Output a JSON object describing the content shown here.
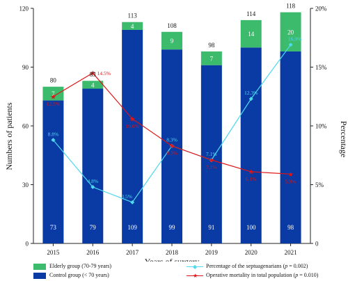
{
  "chart_data": {
    "type": "bar",
    "xlabel": "Years of surgery",
    "ylabel": "Numbers of patients",
    "y2label": "Percentage",
    "categories": [
      "2015",
      "2016",
      "2017",
      "2018",
      "2019",
      "2020",
      "2021"
    ],
    "ylim": [
      0,
      120
    ],
    "y_ticks": [
      "0",
      "30",
      "60",
      "90",
      "120"
    ],
    "y2lim": [
      0,
      20
    ],
    "y2_ticks": [
      "0",
      "5%",
      "10%",
      "15%",
      "20%"
    ],
    "stacked": true,
    "series": [
      {
        "name": "Control group (< 70 years)",
        "axis": "left",
        "color": "#0a3aa3",
        "values": [
          73,
          79,
          109,
          99,
          91,
          100,
          98
        ],
        "labels": [
          "73",
          "79",
          "109",
          "99",
          "91",
          "100",
          "98"
        ]
      },
      {
        "name": "Elderly group (70-79 years)",
        "axis": "left",
        "color": "#3dbb6d",
        "values": [
          7,
          4,
          4,
          9,
          7,
          14,
          20
        ],
        "labels": [
          "7",
          "4",
          "4",
          "9",
          "7",
          "14",
          "20"
        ]
      }
    ],
    "totals": [
      "80",
      "83",
      "113",
      "108",
      "98",
      "114",
      "118"
    ],
    "lines": [
      {
        "name": "Percentage of the septuagenarians",
        "p_value": "(p = 0.002)",
        "axis": "right",
        "color": "#4dd9ee",
        "marker": "diamond",
        "values": [
          8.8,
          4.8,
          3.5,
          8.3,
          7.1,
          12.3,
          16.9
        ],
        "labels": [
          "8.8%",
          "4.8%",
          "3.5%",
          "8.3%",
          "7.1%",
          "12.3%",
          "16.9%"
        ]
      },
      {
        "name": "Operative mortality in total population",
        "p_value": "(p = 0.010)",
        "axis": "right",
        "color": "#e01414",
        "marker": "star",
        "values": [
          12.5,
          14.5,
          10.6,
          8.3,
          7.1,
          6.1,
          5.9
        ],
        "labels": [
          "12.5%",
          "14.5%",
          "10.6%",
          "8.3%",
          "7.1%",
          "6.1%",
          "5.9%"
        ]
      }
    ],
    "legend": {
      "elderly_prefix": "Elderly group (70-79 years)",
      "control_prefix": "Control group (< 70 years)",
      "pct_prefix": "Percentage of the septuagenarians (",
      "pct_p": "p",
      "pct_suffix": " = 0.002)",
      "mort_prefix": "Operative mortality in total population (",
      "mort_p": "p",
      "mort_suffix": " = 0.010)"
    },
    "grid": false,
    "legend_position": "bottom"
  }
}
